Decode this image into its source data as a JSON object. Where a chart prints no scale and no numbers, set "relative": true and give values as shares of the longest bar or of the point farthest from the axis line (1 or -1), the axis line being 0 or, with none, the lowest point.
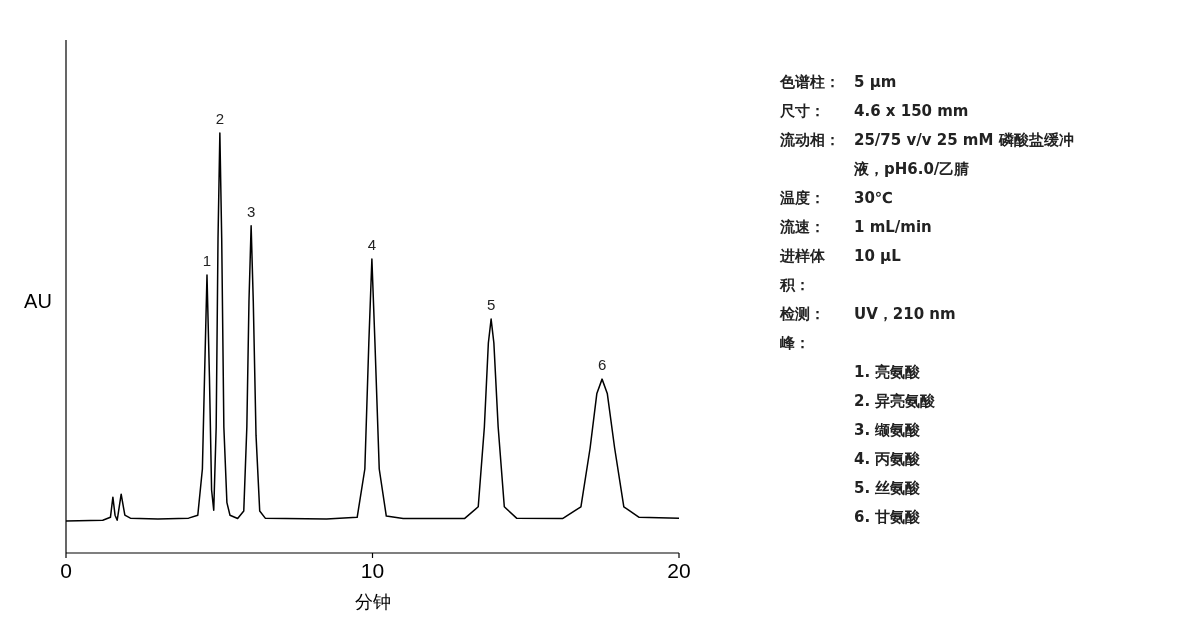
{
  "chart_data": {
    "type": "line",
    "relative": true,
    "ylabel": "AU",
    "xlabel": "分钟",
    "xlim": [
      0,
      20
    ],
    "xticks": [
      0,
      10,
      20
    ],
    "x": [
      0,
      1.2,
      1.45,
      1.53,
      1.6,
      1.67,
      1.8,
      1.92,
      2.1,
      3.0,
      4.0,
      4.3,
      4.45,
      4.52,
      4.6,
      4.68,
      4.75,
      4.82,
      4.9,
      4.96,
      5.02,
      5.08,
      5.15,
      5.25,
      5.35,
      5.6,
      5.8,
      5.9,
      5.97,
      6.04,
      6.11,
      6.2,
      6.32,
      6.5,
      8.5,
      9.5,
      9.75,
      9.88,
      9.98,
      10.08,
      10.22,
      10.45,
      11,
      13.0,
      13.45,
      13.65,
      13.78,
      13.87,
      13.96,
      14.1,
      14.3,
      14.7,
      16.2,
      16.8,
      17.1,
      17.32,
      17.49,
      17.66,
      17.9,
      18.2,
      18.7,
      20
    ],
    "series": [
      {
        "color": "#000000",
        "values": [
          0.076,
          0.078,
          0.085,
          0.133,
          0.09,
          0.078,
          0.14,
          0.09,
          0.083,
          0.081,
          0.083,
          0.09,
          0.2,
          0.42,
          0.662,
          0.42,
          0.15,
          0.102,
          0.3,
          0.75,
          1.0,
          0.75,
          0.3,
          0.12,
          0.09,
          0.082,
          0.1,
          0.3,
          0.6,
          0.779,
          0.6,
          0.28,
          0.1,
          0.083,
          0.081,
          0.085,
          0.2,
          0.5,
          0.7,
          0.5,
          0.2,
          0.088,
          0.082,
          0.082,
          0.11,
          0.3,
          0.5,
          0.557,
          0.5,
          0.3,
          0.11,
          0.083,
          0.082,
          0.11,
          0.25,
          0.38,
          0.414,
          0.38,
          0.25,
          0.11,
          0.085,
          0.083
        ]
      }
    ],
    "annotations": [
      {
        "text": "1",
        "x": 4.6,
        "y": 0.662
      },
      {
        "text": "2",
        "x": 5.02,
        "y": 1.0
      },
      {
        "text": "3",
        "x": 6.04,
        "y": 0.779
      },
      {
        "text": "4",
        "x": 9.98,
        "y": 0.7
      },
      {
        "text": "5",
        "x": 13.87,
        "y": 0.557
      },
      {
        "text": "6",
        "x": 17.49,
        "y": 0.414
      },
      "色谱柱：",
      "5 µm",
      "尺寸：",
      "4.6 x 150 mm",
      "流动相：",
      "25/75 v/v 25 mM 磷酸盐缓冲液，pH6.0/乙腈",
      "温度：",
      "30℃",
      "流速：",
      "1 mL/min",
      "进样体积：",
      "10 µL",
      "检测：",
      "UV，210 nm",
      "峰：",
      "1. 亮氨酸",
      "2. 异亮氨酸",
      "3. 缬氨酸",
      "4. 丙氨酸",
      "5. 丝氨酸",
      "6. 甘氨酸"
    ]
  }
}
